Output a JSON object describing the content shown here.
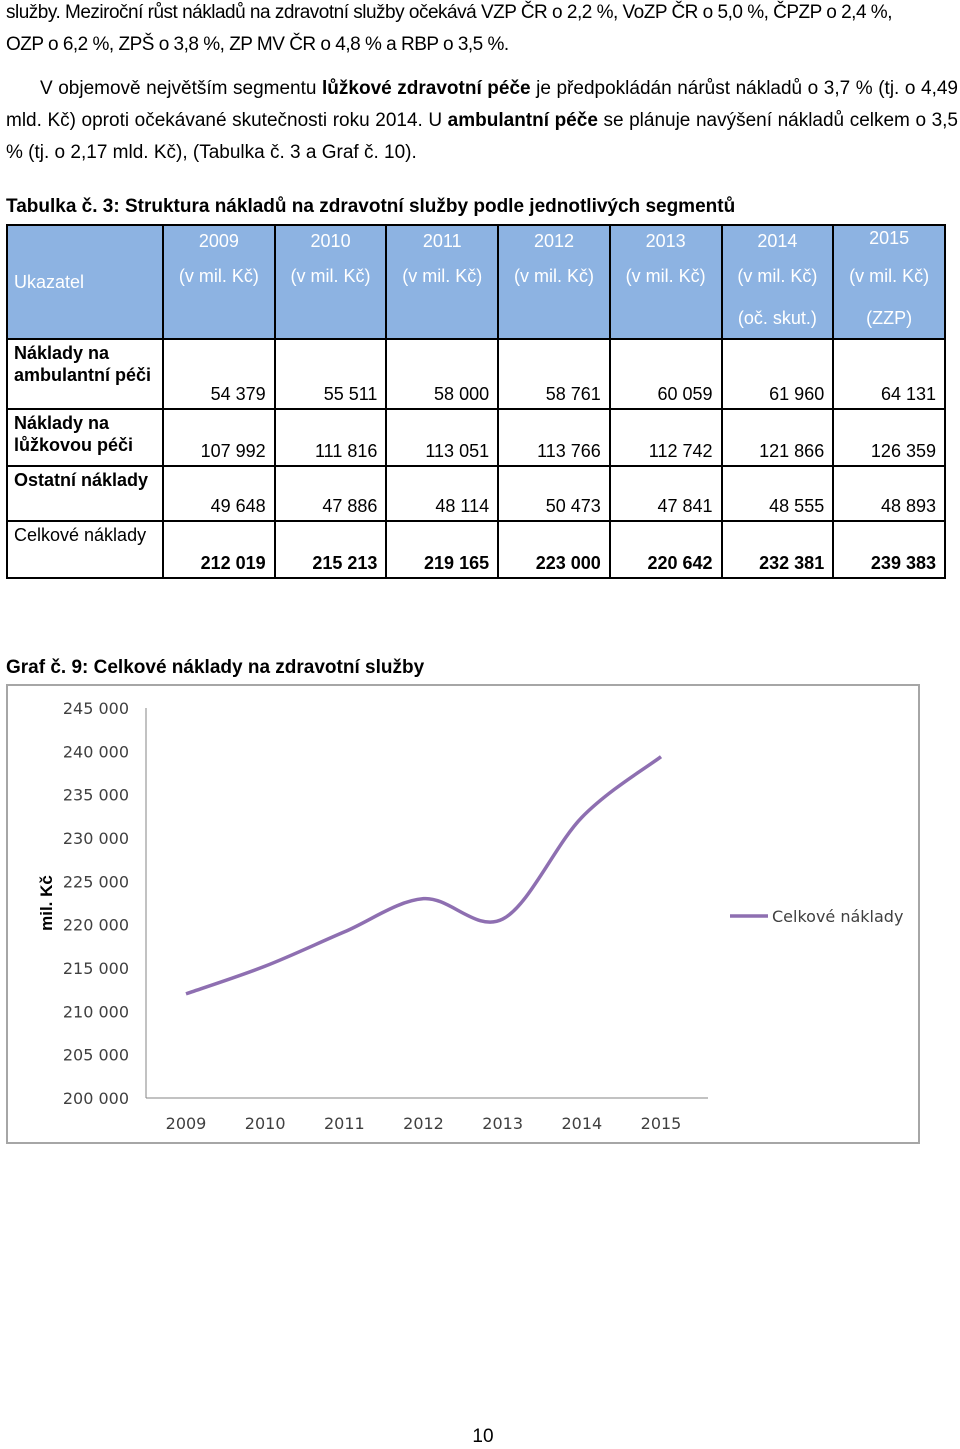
{
  "paragraphs": {
    "p1_line1": "služby. Meziroční růst nákladů na zdravotní služby očekává VZP ČR o 2,2 %, VoZP ČR o 5,0 %, ČPZP o 2,4 %,",
    "p1_line2": "OZP o 6,2 %, ZPŠ o 3,8 %, ZP MV ČR o 4,8 % a RBP o 3,5 %.",
    "p2_a": "V objemově největším segmentu ",
    "p2_b": "lůžkové zdravotní péče",
    "p2_c": " je předpokládán nárůst nákladů o 3,7 % (tj. o 4,49 mld. Kč) oproti očekávané skutečnosti roku 2014. U ",
    "p2_d": "ambulantní péče",
    "p2_e": " se plánuje navýšení nákladů celkem o 3,5 % (tj. o 2,17 mld. Kč), (Tabulka č. 3 a Graf č. 10)."
  },
  "table_caption": "Tabulka č. 3: Struktura nákladů na zdravotní služby podle jednotlivých segmentů",
  "table": {
    "label_header": "Ukazatel",
    "columns": [
      {
        "year": "2009",
        "unit": "(v mil. Kč)",
        "extra": ""
      },
      {
        "year": "2010",
        "unit": "(v mil. Kč)",
        "extra": ""
      },
      {
        "year": "2011",
        "unit": "(v mil. Kč)",
        "extra": ""
      },
      {
        "year": "2012",
        "unit": "(v mil. Kč)",
        "extra": ""
      },
      {
        "year": "2013",
        "unit": "(v mil. Kč)",
        "extra": ""
      },
      {
        "year": "2014",
        "unit": "(v mil. Kč)",
        "extra": "(oč. skut.)"
      },
      {
        "year": "2015",
        "unit": "(v mil. Kč)",
        "extra": "(ZZP)"
      }
    ],
    "rows": [
      {
        "label": "Náklady na ambulantní péči",
        "values": [
          "54 379",
          "55 511",
          "58 000",
          "58 761",
          "60 059",
          "61 960",
          "64 131"
        ]
      },
      {
        "label": "Náklady na lůžkovou péči",
        "values": [
          "107 992",
          "111 816",
          "113 051",
          "113 766",
          "112 742",
          "121 866",
          "126 359"
        ]
      },
      {
        "label": "Ostatní náklady",
        "values": [
          "49 648",
          "47 886",
          "48 114",
          "50 473",
          "47 841",
          "48 555",
          "48 893"
        ]
      },
      {
        "label": "Celkové náklady",
        "values": [
          "212 019",
          "215 213",
          "219 165",
          "223 000",
          "220 642",
          "232 381",
          "239 383"
        ]
      }
    ]
  },
  "chart_caption": "Graf č. 9: Celkové náklady na zdravotní služby",
  "chart_data": {
    "type": "line",
    "x": [
      "2009",
      "2010",
      "2011",
      "2012",
      "2013",
      "2014",
      "2015"
    ],
    "series": [
      {
        "name": "Celkové náklady",
        "values": [
          212019,
          215213,
          219165,
          223000,
          220642,
          232381,
          239383
        ],
        "color": "#8e6fb1"
      }
    ],
    "ylabel": "mil. Kč",
    "ylim": [
      200000,
      245000
    ],
    "yticks": [
      200000,
      205000,
      210000,
      215000,
      220000,
      225000,
      230000,
      235000,
      240000,
      245000
    ],
    "ytick_labels": [
      "200 000",
      "205 000",
      "210 000",
      "215 000",
      "220 000",
      "225 000",
      "230 000",
      "235 000",
      "240 000",
      "245 000"
    ],
    "grid": false,
    "smooth": true,
    "legend": "right"
  },
  "page_number": "10"
}
